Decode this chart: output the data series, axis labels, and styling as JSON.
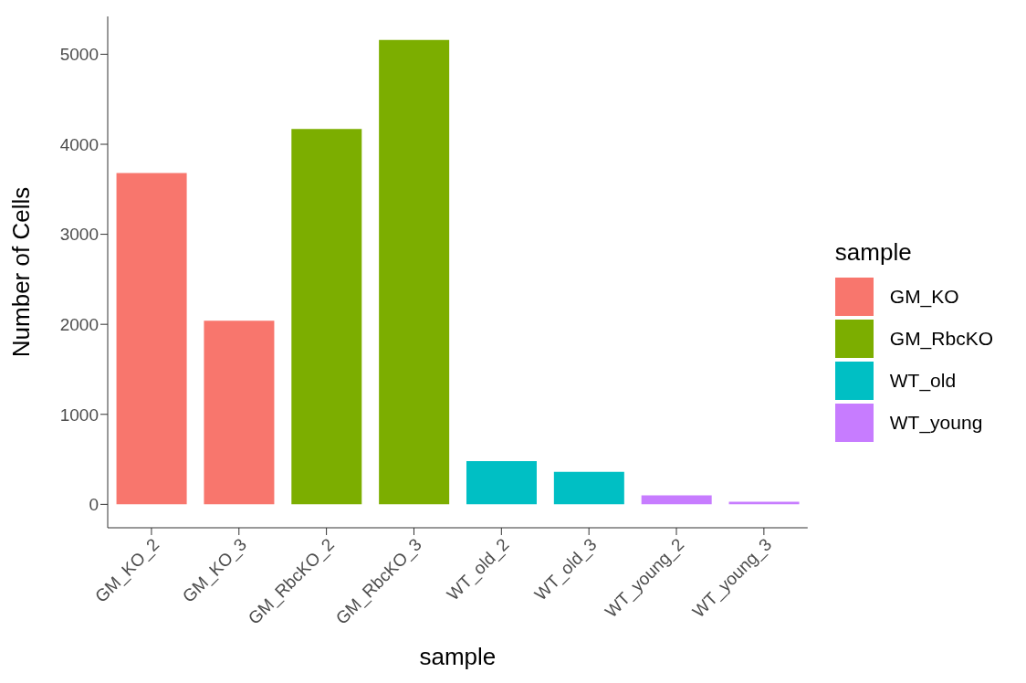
{
  "chart_data": {
    "type": "bar",
    "xlabel": "sample",
    "ylabel": "Number of Cells",
    "legend_title": "sample",
    "categories": [
      "GM_KO_2",
      "GM_KO_3",
      "GM_RbcKO_2",
      "GM_RbcKO_3",
      "WT_old_2",
      "WT_old_3",
      "WT_young_2",
      "WT_young_3"
    ],
    "series": [
      {
        "name": "GM_KO",
        "color": "#f8766d",
        "values": [
          3680,
          2040,
          null,
          null,
          null,
          null,
          null,
          null
        ]
      },
      {
        "name": "GM_RbcKO",
        "color": "#7cae00",
        "values": [
          null,
          null,
          4170,
          5160,
          null,
          null,
          null,
          null
        ]
      },
      {
        "name": "WT_old",
        "color": "#00bfc4",
        "values": [
          null,
          null,
          null,
          null,
          480,
          360,
          null,
          null
        ]
      },
      {
        "name": "WT_young",
        "color": "#c77cff",
        "values": [
          null,
          null,
          null,
          null,
          null,
          null,
          100,
          30
        ]
      }
    ],
    "stacked": true,
    "ylim": [
      -260,
      5420
    ],
    "yticks": [
      0,
      1000,
      2000,
      3000,
      4000,
      5000
    ],
    "grid": false,
    "legend": "right"
  }
}
